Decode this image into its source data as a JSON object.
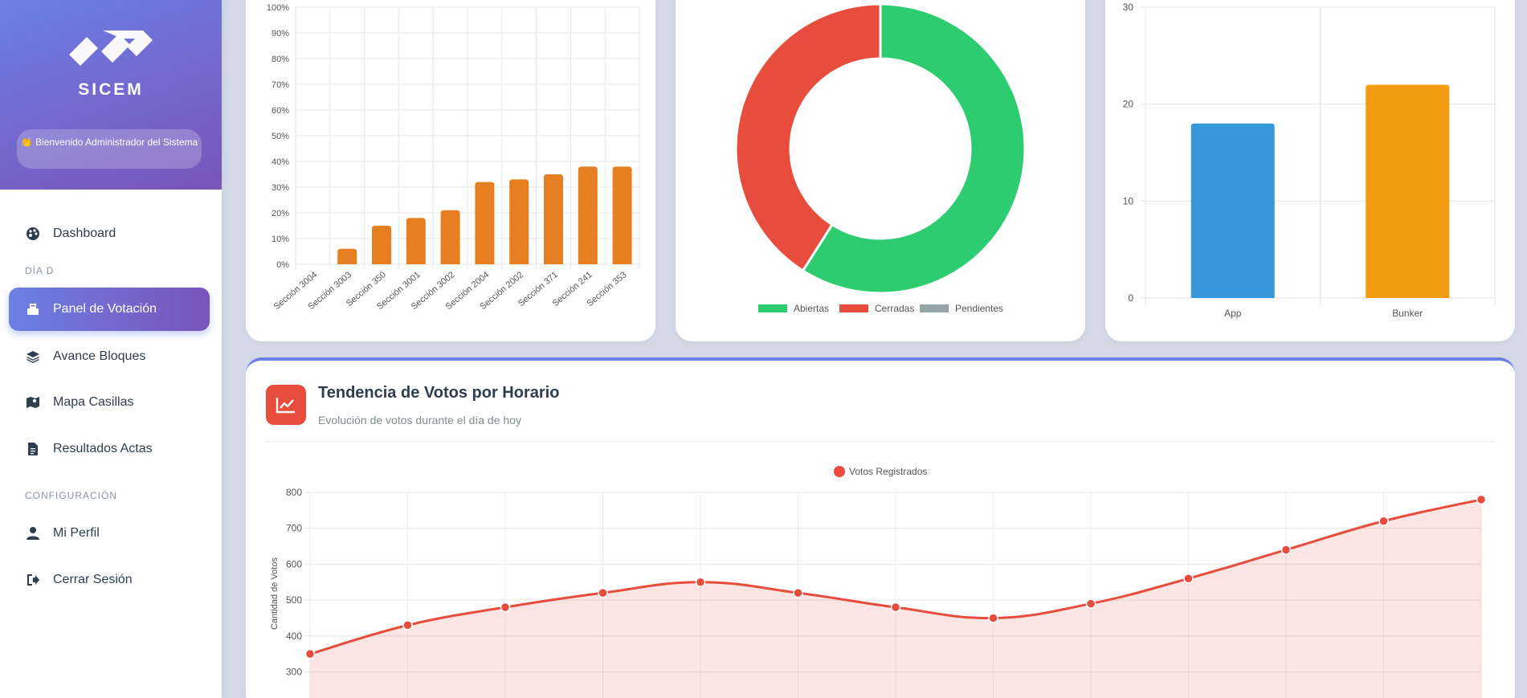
{
  "sidebar": {
    "logo_text": "SICEM",
    "welcome": "👏 Bienvenido Administrador del Sistema",
    "items": [
      {
        "label": "Dashboard",
        "icon": "palette-icon"
      },
      {
        "label": "Panel de Votación",
        "icon": "vote-box-icon",
        "active": true
      },
      {
        "label": "Avance Bloques",
        "icon": "layers-icon"
      },
      {
        "label": "Mapa Casillas",
        "icon": "map-icon"
      },
      {
        "label": "Resultados Actas",
        "icon": "document-icon"
      },
      {
        "label": "Mi Perfil",
        "icon": "user-icon"
      },
      {
        "label": "Cerrar Sesión",
        "icon": "logout-icon"
      }
    ],
    "sections": [
      "DÍA D",
      "CONFIGURACIÓN"
    ]
  },
  "colors": {
    "accent_start": "#6b7fe6",
    "accent_end": "#7a55b8",
    "bar_orange": "#e67e22",
    "green": "#2ecc71",
    "red": "#e74c3c",
    "gray": "#95a5a6",
    "blue": "#3498db",
    "yellow": "#f39c12"
  },
  "trend": {
    "title": "Tendencia de Votos por Horario",
    "subtitle": "Evolución de votos durante el día de hoy"
  },
  "chart_data": [
    {
      "type": "bar",
      "categories": [
        "Sección 3004",
        "Sección 3003",
        "Sección 350",
        "Sección 3001",
        "Sección 3002",
        "Sección 2004",
        "Sección 2002",
        "Sección 371",
        "Sección 241",
        "Sección 353"
      ],
      "values": [
        0,
        6,
        15,
        18,
        21,
        32,
        33,
        35,
        38,
        38
      ],
      "ylim": [
        0,
        100
      ],
      "yticks": [
        "0%",
        "10%",
        "20%",
        "30%",
        "40%",
        "50%",
        "60%",
        "70%",
        "80%",
        "90%",
        "100%"
      ],
      "grid": true
    },
    {
      "type": "pie",
      "labels": [
        "Abiertas",
        "Cerradas",
        "Pendientes"
      ],
      "values": [
        59,
        41,
        0
      ],
      "colors": [
        "#2ecc71",
        "#e74c3c",
        "#95a5a6"
      ],
      "legend": "bottom"
    },
    {
      "type": "bar",
      "categories": [
        "App",
        "Bunker"
      ],
      "values": [
        18,
        22
      ],
      "colors": [
        "#3498db",
        "#f39c12"
      ],
      "ylim": [
        0,
        30
      ],
      "yticks": [
        "0",
        "10",
        "20",
        "30"
      ],
      "grid": true
    },
    {
      "type": "area",
      "series": [
        {
          "name": "Votos Registrados",
          "values": [
            350,
            430,
            480,
            520,
            550,
            520,
            480,
            450,
            490,
            560,
            640,
            720,
            780
          ]
        }
      ],
      "ylabel": "Cantidad de Votos",
      "yticks": [
        "300",
        "400",
        "500",
        "600",
        "700",
        "800"
      ],
      "legend": "top",
      "grid": true
    }
  ]
}
